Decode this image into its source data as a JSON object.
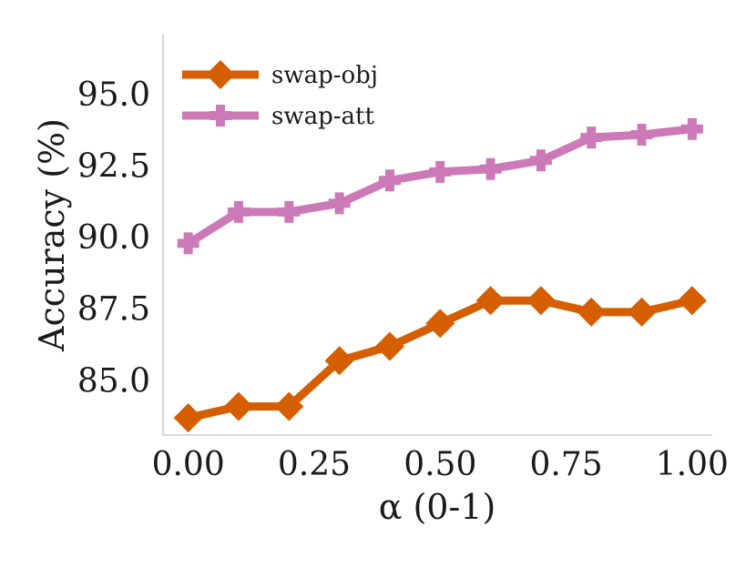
{
  "chart_data": {
    "type": "line",
    "title": "",
    "xlabel": "α (0-1)",
    "ylabel": "Accuracy (%)",
    "x": [
      0.0,
      0.1,
      0.2,
      0.3,
      0.4,
      0.5,
      0.6,
      0.7,
      0.8,
      0.9,
      1.0
    ],
    "xlim": [
      -0.05,
      1.04
    ],
    "ylim": [
      83.1,
      97.1
    ],
    "xticks": [
      0.0,
      0.25,
      0.5,
      0.75,
      1.0
    ],
    "xtick_labels": [
      "0.00",
      "0.25",
      "0.50",
      "0.75",
      "1.00"
    ],
    "yticks": [
      85.0,
      87.5,
      90.0,
      92.5,
      95.0
    ],
    "ytick_labels": [
      "85.0",
      "87.5",
      "90.0",
      "92.5",
      "95.0"
    ],
    "grid": false,
    "legend_position": "top-left",
    "series": [
      {
        "name": "swap-obj",
        "color": "#d45e00",
        "marker": "diamond",
        "values": [
          83.7,
          84.1,
          84.1,
          85.7,
          86.2,
          87.0,
          87.8,
          87.8,
          87.4,
          87.4,
          87.8
        ]
      },
      {
        "name": "swap-att",
        "color": "#cc79b8",
        "marker": "plus",
        "values": [
          89.8,
          90.9,
          90.9,
          91.2,
          92.0,
          92.3,
          92.4,
          92.7,
          93.5,
          93.6,
          93.8
        ]
      }
    ]
  }
}
